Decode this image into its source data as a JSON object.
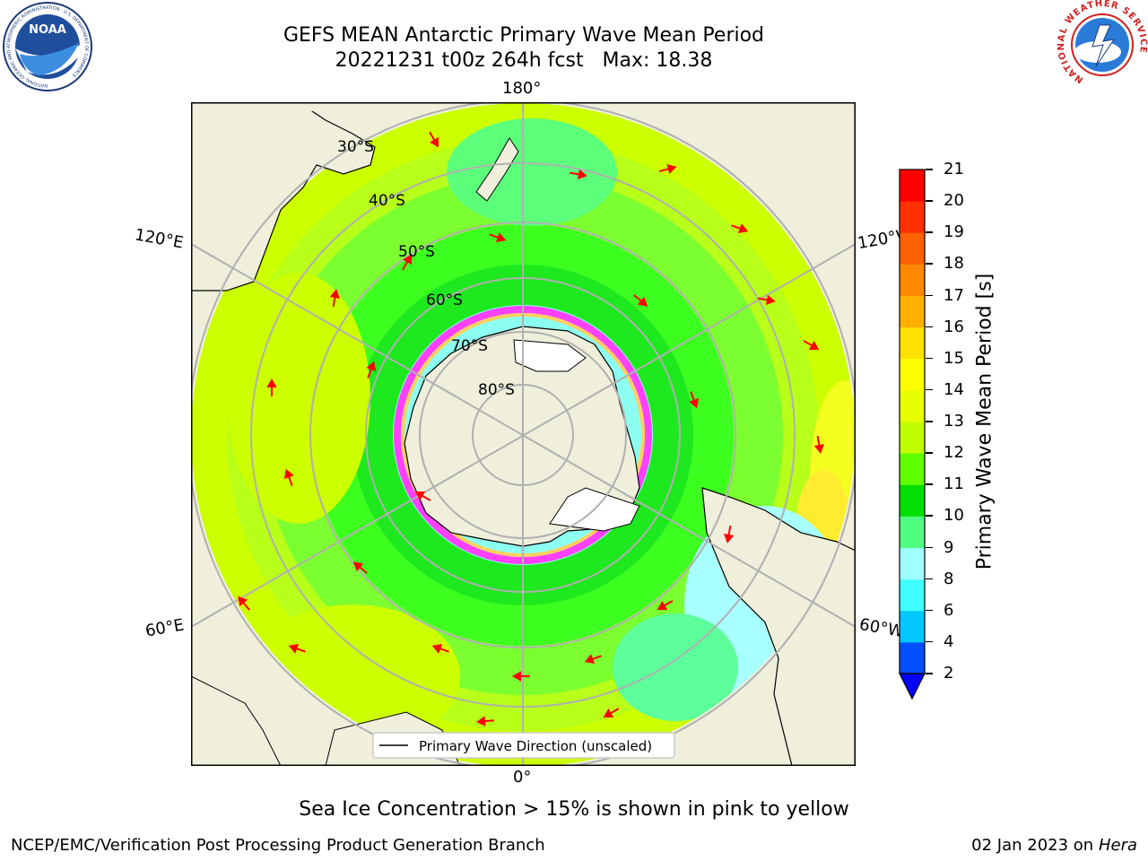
{
  "header": {
    "title_line1": "GEFS MEAN Antarctic Primary Wave Mean Period",
    "title_line2": "20221231 t00z 264h fcst   Max: 18.38"
  },
  "logos": {
    "left": "NOAA",
    "left_ring": "NATIONAL OCEANIC AND ATMOSPHERIC ADMINISTRATION · U.S. DEPARTMENT OF COMMERCE",
    "right_ring": "NATIONAL WEATHER SERVICE"
  },
  "map": {
    "longitude_labels": {
      "top": "180°",
      "bottom": "0°",
      "left_upper": "120°E",
      "left_lower": "60°E",
      "right_upper": "120°W",
      "right_lower": "60°W"
    },
    "latitude_labels": [
      "30°S",
      "40°S",
      "50°S",
      "60°S",
      "70°S",
      "80°S"
    ],
    "legend": "Primary Wave Direction (unscaled)"
  },
  "colorbar": {
    "label": "Primary Wave Mean Period [s]",
    "ticks": [
      "2",
      "4",
      "6",
      "8",
      "9",
      "10",
      "11",
      "12",
      "13",
      "14",
      "15",
      "16",
      "17",
      "18",
      "19",
      "20",
      "21"
    ],
    "colors": [
      "#0050ff",
      "#00c8ff",
      "#40ffff",
      "#a0ffff",
      "#50ff80",
      "#00e000",
      "#60ff00",
      "#c0ff00",
      "#e8ff00",
      "#ffff00",
      "#ffe000",
      "#ffb000",
      "#ff8800",
      "#ff6000",
      "#ff3000",
      "#ff0000"
    ],
    "under_color": "#0000ff"
  },
  "caption": "Sea Ice Concentration > 15% is shown in pink to yellow",
  "footer": {
    "left": "NCEP/EMC/Verification Post Processing Product Generation Branch",
    "right_prefix": "02 Jan 2023 on ",
    "right_italic": "Hera"
  }
}
